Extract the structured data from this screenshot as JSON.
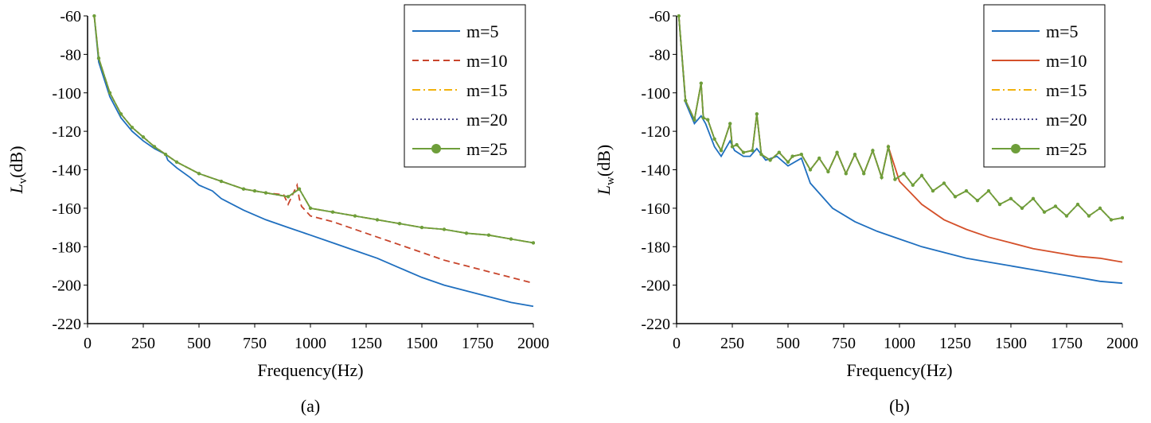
{
  "chart_data": [
    {
      "type": "line",
      "caption": "(a)",
      "xlabel": "Frequency(Hz)",
      "ylabel_main": "L",
      "ylabel_sub": "v",
      "ylabel_unit": "(dB)",
      "xlim": [
        0,
        2000
      ],
      "ylim": [
        -220,
        -60
      ],
      "xticks": [
        0,
        250,
        500,
        750,
        1000,
        1250,
        1500,
        1750,
        2000
      ],
      "yticks": [
        -60,
        -80,
        -100,
        -120,
        -140,
        -160,
        -180,
        -200,
        -220
      ],
      "legend_position": "top-right",
      "series": [
        {
          "name": "m=5",
          "color": "#1f6fbf",
          "style": "solid",
          "x": [
            30,
            50,
            100,
            150,
            200,
            250,
            300,
            350,
            360,
            400,
            460,
            500,
            540,
            560,
            600,
            700,
            800,
            900,
            1000,
            1100,
            1200,
            1300,
            1400,
            1500,
            1600,
            1700,
            1800,
            1900,
            2000
          ],
          "y": [
            -60,
            -84,
            -102,
            -113,
            -120,
            -125,
            -129,
            -132,
            -135,
            -139,
            -144,
            -148,
            -150,
            -151,
            -155,
            -161,
            -166,
            -170,
            -174,
            -178,
            -182,
            -186,
            -191,
            -196,
            -200,
            -203,
            -206,
            -209,
            -211
          ]
        },
        {
          "name": "m=10",
          "color": "#c8452c",
          "style": "dashed",
          "x": [
            30,
            50,
            100,
            150,
            200,
            250,
            300,
            350,
            400,
            500,
            600,
            700,
            750,
            800,
            880,
            900,
            940,
            950,
            960,
            1000,
            1100,
            1200,
            1300,
            1400,
            1500,
            1600,
            1700,
            1800,
            1900,
            2000
          ],
          "y": [
            -60,
            -82,
            -100,
            -111,
            -118,
            -123,
            -128,
            -132,
            -136,
            -142,
            -146,
            -150,
            -151,
            -152,
            -153,
            -158,
            -148,
            -155,
            -159,
            -164,
            -167,
            -171,
            -175,
            -179,
            -183,
            -187,
            -190,
            -193,
            -196,
            -199
          ]
        },
        {
          "name": "m=15",
          "color": "#f2b20c",
          "style": "dashdot",
          "x": [
            30,
            50,
            100,
            150,
            200,
            250,
            300,
            350,
            400,
            500,
            600,
            700,
            750,
            800,
            900,
            950,
            1000,
            1100,
            1200,
            1300,
            1400,
            1500,
            1600,
            1700,
            1800,
            1900,
            2000
          ],
          "y": [
            -60,
            -82,
            -100,
            -111,
            -118,
            -123,
            -128,
            -132,
            -136,
            -142,
            -146,
            -150,
            -151,
            -152,
            -154,
            -150,
            -160,
            -162,
            -164,
            -166,
            -168,
            -170,
            -171,
            -173,
            -174,
            -176,
            -178
          ]
        },
        {
          "name": "m=20",
          "color": "#4a4a8a",
          "style": "dotted",
          "x": [
            30,
            50,
            100,
            150,
            200,
            250,
            300,
            350,
            400,
            500,
            600,
            700,
            750,
            800,
            900,
            950,
            1000,
            1100,
            1200,
            1300,
            1400,
            1500,
            1600,
            1700,
            1800,
            1900,
            2000
          ],
          "y": [
            -60,
            -82,
            -100,
            -111,
            -118,
            -123,
            -128,
            -132,
            -136,
            -142,
            -146,
            -150,
            -151,
            -152,
            -154,
            -150,
            -160,
            -162,
            -164,
            -166,
            -168,
            -170,
            -171,
            -173,
            -174,
            -176,
            -178
          ]
        },
        {
          "name": "m=25",
          "color": "#6e9e3a",
          "style": "solid-marker",
          "x": [
            30,
            50,
            100,
            150,
            200,
            250,
            300,
            350,
            400,
            500,
            600,
            700,
            750,
            800,
            900,
            950,
            1000,
            1100,
            1200,
            1300,
            1400,
            1500,
            1600,
            1700,
            1800,
            1900,
            2000
          ],
          "y": [
            -60,
            -82,
            -100,
            -111,
            -118,
            -123,
            -128,
            -132,
            -136,
            -142,
            -146,
            -150,
            -151,
            -152,
            -154,
            -150,
            -160,
            -162,
            -164,
            -166,
            -168,
            -170,
            -171,
            -173,
            -174,
            -176,
            -178
          ]
        }
      ]
    },
    {
      "type": "line",
      "caption": "(b)",
      "xlabel": "Frequency(Hz)",
      "ylabel_main": "L",
      "ylabel_sub": "w",
      "ylabel_unit": "(dB)",
      "xlim": [
        0,
        2000
      ],
      "ylim": [
        -220,
        -60
      ],
      "xticks": [
        0,
        250,
        500,
        750,
        1000,
        1250,
        1500,
        1750,
        2000
      ],
      "yticks": [
        -60,
        -80,
        -100,
        -120,
        -140,
        -160,
        -180,
        -200,
        -220
      ],
      "legend_position": "top-right",
      "series": [
        {
          "name": "m=5",
          "color": "#1f6fbf",
          "style": "solid",
          "x": [
            10,
            40,
            80,
            110,
            130,
            170,
            200,
            240,
            260,
            300,
            330,
            360,
            400,
            450,
            500,
            560,
            600,
            700,
            800,
            900,
            1000,
            1100,
            1200,
            1300,
            1400,
            1500,
            1600,
            1700,
            1800,
            1900,
            2000
          ],
          "y": [
            -60,
            -105,
            -116,
            -112,
            -116,
            -128,
            -133,
            -125,
            -130,
            -133,
            -133,
            -129,
            -135,
            -133,
            -138,
            -134,
            -147,
            -160,
            -167,
            -172,
            -176,
            -180,
            -183,
            -186,
            -188,
            -190,
            -192,
            -194,
            -196,
            -198,
            -199
          ]
        },
        {
          "name": "m=10",
          "color": "#d4502a",
          "style": "solid",
          "x": [
            10,
            40,
            80,
            110,
            120,
            140,
            170,
            200,
            240,
            250,
            270,
            300,
            340,
            360,
            380,
            420,
            460,
            500,
            520,
            560,
            600,
            640,
            680,
            720,
            760,
            800,
            840,
            880,
            920,
            950,
            1000,
            1100,
            1200,
            1300,
            1400,
            1500,
            1600,
            1700,
            1800,
            1900,
            2000
          ],
          "y": [
            -60,
            -104,
            -114,
            -95,
            -113,
            -114,
            -124,
            -130,
            -116,
            -128,
            -127,
            -131,
            -130,
            -111,
            -132,
            -135,
            -131,
            -136,
            -133,
            -132,
            -140,
            -134,
            -141,
            -131,
            -142,
            -132,
            -142,
            -130,
            -144,
            -128,
            -146,
            -158,
            -166,
            -171,
            -175,
            -178,
            -181,
            -183,
            -185,
            -186,
            -188
          ]
        },
        {
          "name": "m=15",
          "color": "#f2b20c",
          "style": "dashdot",
          "x": [
            10,
            40,
            80,
            110,
            120,
            140,
            170,
            200,
            240,
            250,
            270,
            300,
            340,
            360,
            380,
            420,
            460,
            500,
            520,
            560,
            600,
            640,
            680,
            720,
            760,
            800,
            840,
            880,
            920,
            950,
            980,
            1020,
            1060,
            1100,
            1150,
            1200,
            1250,
            1300,
            1350,
            1400,
            1450,
            1500,
            1550,
            1600,
            1650,
            1700,
            1750,
            1800,
            1850,
            1900,
            1950,
            2000
          ],
          "y": [
            -60,
            -104,
            -114,
            -95,
            -113,
            -114,
            -124,
            -130,
            -116,
            -128,
            -127,
            -131,
            -130,
            -111,
            -132,
            -135,
            -131,
            -136,
            -133,
            -132,
            -140,
            -134,
            -141,
            -131,
            -142,
            -132,
            -142,
            -130,
            -144,
            -128,
            -145,
            -142,
            -148,
            -143,
            -151,
            -147,
            -154,
            -151,
            -156,
            -151,
            -158,
            -155,
            -160,
            -155,
            -162,
            -159,
            -164,
            -158,
            -164,
            -160,
            -166,
            -165
          ]
        },
        {
          "name": "m=20",
          "color": "#4a4a8a",
          "style": "dotted",
          "x": [
            10,
            40,
            80,
            110,
            120,
            140,
            170,
            200,
            240,
            250,
            270,
            300,
            340,
            360,
            380,
            420,
            460,
            500,
            520,
            560,
            600,
            640,
            680,
            720,
            760,
            800,
            840,
            880,
            920,
            950,
            980,
            1020,
            1060,
            1100,
            1150,
            1200,
            1250,
            1300,
            1350,
            1400,
            1450,
            1500,
            1550,
            1600,
            1650,
            1700,
            1750,
            1800,
            1850,
            1900,
            1950,
            2000
          ],
          "y": [
            -60,
            -104,
            -114,
            -95,
            -113,
            -114,
            -124,
            -130,
            -116,
            -128,
            -127,
            -131,
            -130,
            -111,
            -132,
            -135,
            -131,
            -136,
            -133,
            -132,
            -140,
            -134,
            -141,
            -131,
            -142,
            -132,
            -142,
            -130,
            -144,
            -128,
            -145,
            -142,
            -148,
            -143,
            -151,
            -147,
            -154,
            -151,
            -156,
            -151,
            -158,
            -155,
            -160,
            -155,
            -162,
            -159,
            -164,
            -158,
            -164,
            -160,
            -166,
            -165
          ]
        },
        {
          "name": "m=25",
          "color": "#6e9e3a",
          "style": "solid-marker",
          "x": [
            10,
            40,
            80,
            110,
            120,
            140,
            170,
            200,
            240,
            250,
            270,
            300,
            340,
            360,
            380,
            420,
            460,
            500,
            520,
            560,
            600,
            640,
            680,
            720,
            760,
            800,
            840,
            880,
            920,
            950,
            980,
            1020,
            1060,
            1100,
            1150,
            1200,
            1250,
            1300,
            1350,
            1400,
            1450,
            1500,
            1550,
            1600,
            1650,
            1700,
            1750,
            1800,
            1850,
            1900,
            1950,
            2000
          ],
          "y": [
            -60,
            -104,
            -114,
            -95,
            -113,
            -114,
            -124,
            -130,
            -116,
            -128,
            -127,
            -131,
            -130,
            -111,
            -132,
            -135,
            -131,
            -136,
            -133,
            -132,
            -140,
            -134,
            -141,
            -131,
            -142,
            -132,
            -142,
            -130,
            -144,
            -128,
            -145,
            -142,
            -148,
            -143,
            -151,
            -147,
            -154,
            -151,
            -156,
            -151,
            -158,
            -155,
            -160,
            -155,
            -162,
            -159,
            -164,
            -158,
            -164,
            -160,
            -166,
            -165
          ]
        }
      ]
    }
  ]
}
